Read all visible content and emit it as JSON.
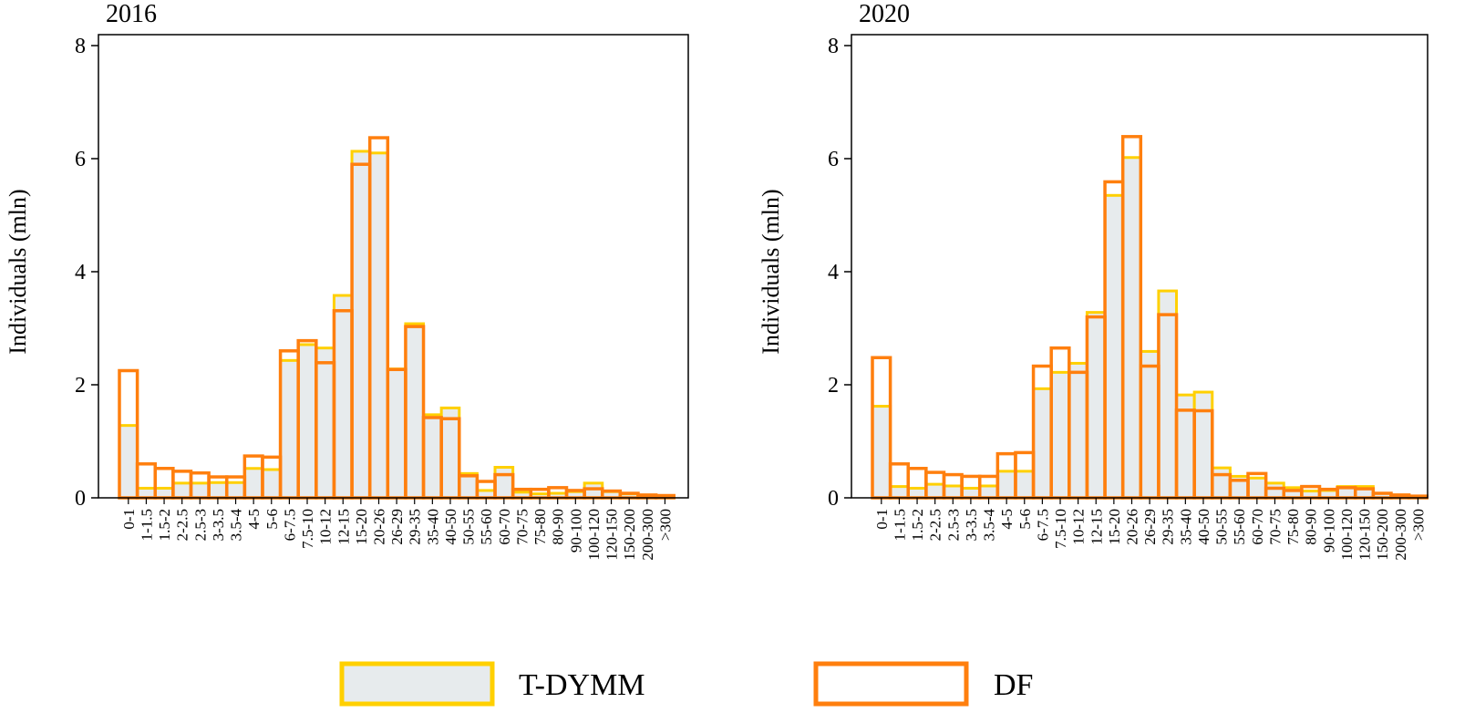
{
  "colors": {
    "tdymm_fill": "#e7ebed",
    "tdymm_stroke": "#ffd000",
    "df_stroke": "#ff7f0e",
    "axis": "#000000"
  },
  "legend": {
    "position": "bottom-center",
    "items": [
      {
        "label": "T-DYMM",
        "style": "filled"
      },
      {
        "label": "DF",
        "style": "outline"
      }
    ]
  },
  "chart_data": [
    {
      "type": "bar",
      "title": "2016",
      "ylabel": "Individuals (mln)",
      "ylim": [
        0,
        8
      ],
      "yticks": [
        "0",
        "2",
        "4",
        "6",
        "8"
      ],
      "grid": false,
      "categories": [
        "0-1",
        "1-1.5",
        "1.5-2",
        "2-2.5",
        "2.5-3",
        "3-3.5",
        "3.5-4",
        "4-5",
        "5-6",
        "6-7.5",
        "7.5-10",
        "10-12",
        "12-15",
        "15-20",
        "20-26",
        "26-29",
        "29-35",
        "35-40",
        "40-50",
        "50-55",
        "55-60",
        "60-70",
        "70-75",
        "75-80",
        "80-90",
        "90-100",
        "100-120",
        "120-150",
        "150-200",
        "200-300",
        ">300"
      ],
      "series": [
        {
          "name": "T-DYMM",
          "values": [
            1.28,
            0.17,
            0.17,
            0.26,
            0.26,
            0.27,
            0.27,
            0.52,
            0.5,
            2.43,
            2.71,
            2.65,
            3.58,
            6.13,
            6.1,
            2.28,
            3.08,
            1.47,
            1.59,
            0.43,
            0.13,
            0.54,
            0.1,
            0.07,
            0.08,
            0.11,
            0.26,
            0.11,
            0.07,
            0.04,
            0.03
          ]
        },
        {
          "name": "DF",
          "values": [
            2.25,
            0.6,
            0.52,
            0.47,
            0.44,
            0.37,
            0.37,
            0.74,
            0.72,
            2.6,
            2.78,
            2.39,
            3.31,
            5.9,
            6.37,
            2.27,
            3.03,
            1.42,
            1.4,
            0.39,
            0.29,
            0.41,
            0.15,
            0.15,
            0.18,
            0.13,
            0.16,
            0.12,
            0.08,
            0.05,
            0.04
          ]
        }
      ]
    },
    {
      "type": "bar",
      "title": "2020",
      "ylabel": "Individuals (mln)",
      "ylim": [
        0,
        8
      ],
      "yticks": [
        "0",
        "2",
        "4",
        "6",
        "8"
      ],
      "grid": false,
      "categories": [
        "0-1",
        "1-1.5",
        "1.5-2",
        "2-2.5",
        "2.5-3",
        "3-3.5",
        "3.5-4",
        "4-5",
        "5-6",
        "6-7.5",
        "7.5-10",
        "10-12",
        "12-15",
        "15-20",
        "20-26",
        "26-29",
        "29-35",
        "35-40",
        "40-50",
        "50-55",
        "55-60",
        "60-70",
        "70-75",
        "75-80",
        "80-90",
        "90-100",
        "100-120",
        "120-150",
        "150-200",
        "200-300",
        ">300"
      ],
      "series": [
        {
          "name": "T-DYMM",
          "values": [
            1.62,
            0.2,
            0.17,
            0.24,
            0.21,
            0.17,
            0.21,
            0.47,
            0.47,
            1.93,
            2.22,
            2.38,
            3.28,
            5.35,
            6.02,
            2.59,
            3.66,
            1.82,
            1.87,
            0.53,
            0.38,
            0.35,
            0.26,
            0.18,
            0.12,
            0.13,
            0.2,
            0.2,
            0.08,
            0.05,
            0.03
          ]
        },
        {
          "name": "DF",
          "values": [
            2.48,
            0.6,
            0.52,
            0.45,
            0.41,
            0.38,
            0.38,
            0.78,
            0.8,
            2.33,
            2.65,
            2.22,
            3.2,
            5.59,
            6.39,
            2.33,
            3.24,
            1.55,
            1.54,
            0.41,
            0.31,
            0.43,
            0.17,
            0.13,
            0.2,
            0.15,
            0.18,
            0.16,
            0.08,
            0.05,
            0.03
          ]
        }
      ]
    }
  ]
}
